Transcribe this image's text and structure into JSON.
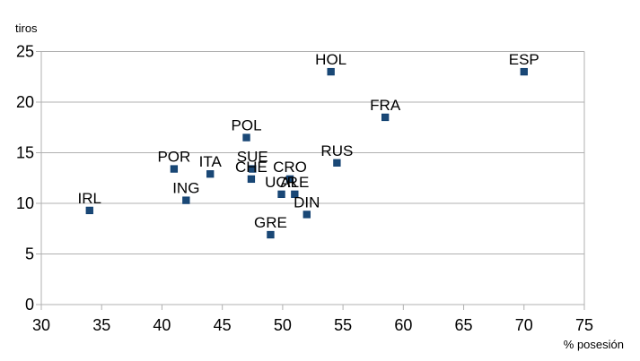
{
  "chart_data": {
    "type": "scatter",
    "title": "",
    "xlabel": "% posesión",
    "ylabel": "tiros",
    "xlim": [
      30,
      75
    ],
    "ylim": [
      0,
      25
    ],
    "x_ticks": [
      30,
      35,
      40,
      45,
      50,
      55,
      60,
      65,
      70,
      75
    ],
    "y_ticks": [
      0,
      5,
      10,
      15,
      20,
      25
    ],
    "grid": "horizontal-only",
    "legend": "none",
    "marker": "square",
    "colors": {
      "point_fill": "#1a4876",
      "point_border": "#0c3c6e",
      "grid": "#b0b0b0",
      "text": "#000000",
      "background": "#ffffff"
    },
    "points": [
      {
        "label": "IRL",
        "x": 34.0,
        "y": 9.3
      },
      {
        "label": "POR",
        "x": 41.0,
        "y": 13.4
      },
      {
        "label": "ING",
        "x": 42.0,
        "y": 10.3
      },
      {
        "label": "ITA",
        "x": 44.0,
        "y": 12.9
      },
      {
        "label": "POL",
        "x": 47.0,
        "y": 16.5
      },
      {
        "label": "SUE",
        "x": 47.5,
        "y": 13.4
      },
      {
        "label": "CHE",
        "x": 47.4,
        "y": 12.4
      },
      {
        "label": "GRE",
        "x": 49.0,
        "y": 6.9
      },
      {
        "label": "UCR",
        "x": 49.9,
        "y": 10.9
      },
      {
        "label": "CRO",
        "x": 50.6,
        "y": 12.4
      },
      {
        "label": "ALE",
        "x": 51.0,
        "y": 10.9
      },
      {
        "label": "DIN",
        "x": 52.0,
        "y": 8.9
      },
      {
        "label": "HOL",
        "x": 54.0,
        "y": 23.0
      },
      {
        "label": "RUS",
        "x": 54.5,
        "y": 14.0
      },
      {
        "label": "FRA",
        "x": 58.5,
        "y": 18.5
      },
      {
        "label": "ESP",
        "x": 70.0,
        "y": 23.0
      }
    ]
  }
}
